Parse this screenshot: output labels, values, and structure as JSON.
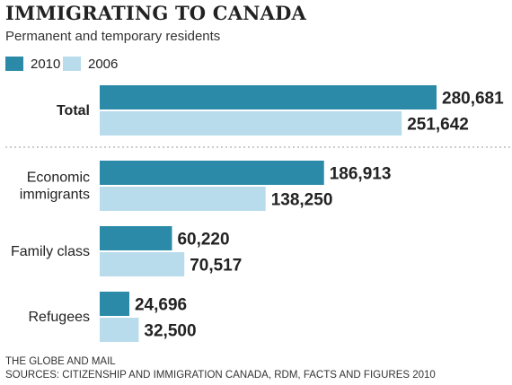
{
  "title": "IMMIGRATING TO CANADA",
  "subtitle": "Permanent and temporary residents",
  "colors": {
    "series_2010": "#2a8aa8",
    "series_2006": "#b9dcec"
  },
  "source": {
    "line1": "THE GLOBE AND MAIL",
    "line2": "SOURCES: CITIZENSHIP AND IMMIGRATION CANADA, RDM, FACTS AND FIGURES 2010"
  },
  "chart_data": {
    "type": "bar",
    "orientation": "horizontal",
    "title": "IMMIGRATING TO CANADA",
    "subtitle": "Permanent and temporary residents",
    "categories": [
      [
        "Total"
      ],
      [
        "Economic",
        "immigrants"
      ],
      [
        "Family class"
      ],
      [
        "Refugees"
      ]
    ],
    "series": [
      {
        "name": "2010",
        "values": [
          280681,
          186913,
          60220,
          24696
        ],
        "labels": [
          "280,681",
          "186,913",
          "60,220",
          "24,696"
        ]
      },
      {
        "name": "2006",
        "values": [
          251642,
          138250,
          70517,
          32500
        ],
        "labels": [
          "251,642",
          "138,250",
          "70,517",
          "32,500"
        ]
      }
    ],
    "xlim": [
      0,
      280681
    ],
    "grid": false,
    "legend": "top-left",
    "divider_after_first_category": true
  }
}
